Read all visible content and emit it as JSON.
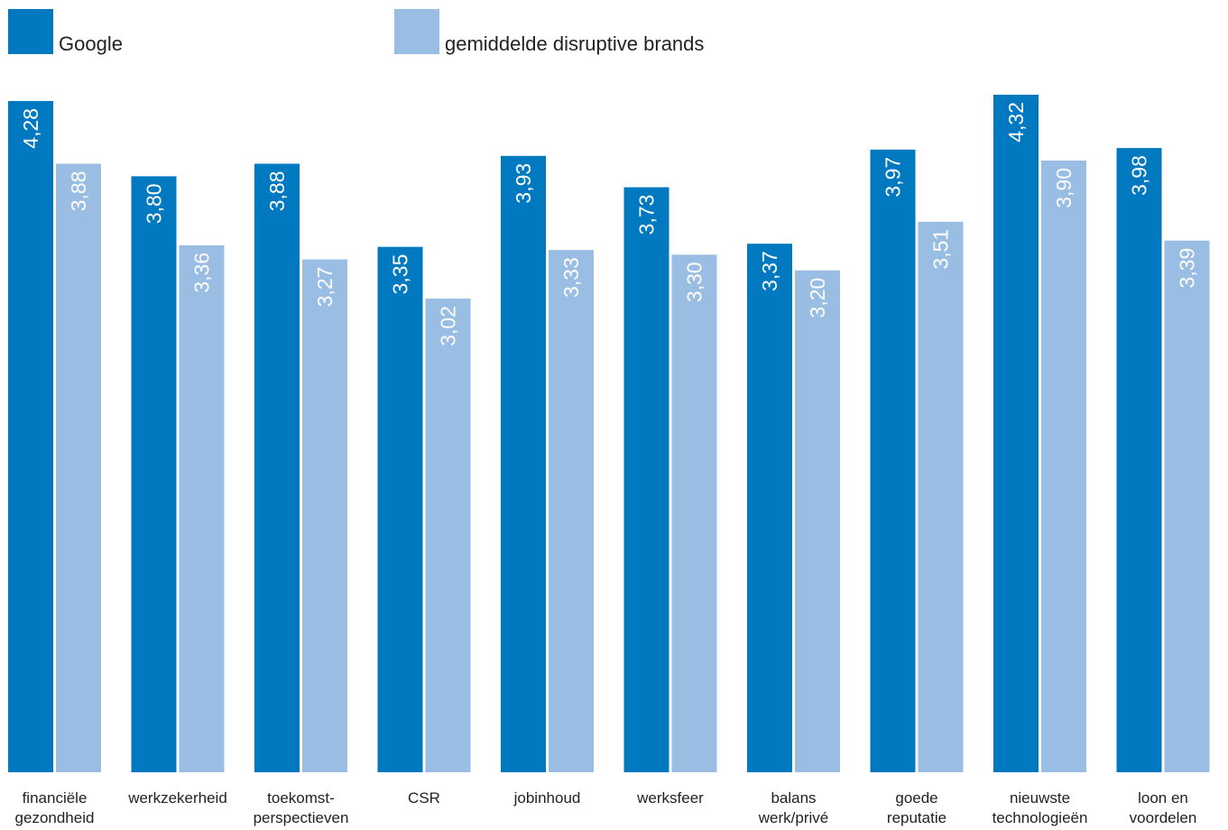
{
  "chart_data": {
    "type": "bar",
    "categories": [
      [
        "financiële",
        "gezondheid"
      ],
      [
        "werkzekerheid"
      ],
      [
        "toekomst-",
        "perspectieven"
      ],
      [
        "CSR"
      ],
      [
        "jobinhoud"
      ],
      [
        "werksfeer"
      ],
      [
        "balans",
        "werk/privé"
      ],
      [
        "goede",
        "reputatie"
      ],
      [
        "nieuwste",
        "technologieën"
      ],
      [
        "loon en",
        "voordelen"
      ]
    ],
    "series": [
      {
        "name": "Google",
        "color": "#0079c1",
        "values": [
          4.28,
          3.8,
          3.88,
          3.35,
          3.93,
          3.73,
          3.37,
          3.97,
          4.32,
          3.98
        ],
        "labels": [
          "4,28",
          "3,80",
          "3,88",
          "3,35",
          "3,93",
          "3,73",
          "3,37",
          "3,97",
          "4,32",
          "3,98"
        ]
      },
      {
        "name": "gemiddelde disruptive brands",
        "color": "#99bde3",
        "values": [
          3.88,
          3.36,
          3.27,
          3.02,
          3.33,
          3.3,
          3.2,
          3.51,
          3.9,
          3.39
        ],
        "labels": [
          "3,88",
          "3,36",
          "3,27",
          "3,02",
          "3,33",
          "3,30",
          "3,20",
          "3,51",
          "3,90",
          "3,39"
        ]
      }
    ],
    "ylim": [
      0,
      4.32
    ],
    "grid": false,
    "legend_position": "top-left",
    "value_labels": "rotated inside bars"
  }
}
